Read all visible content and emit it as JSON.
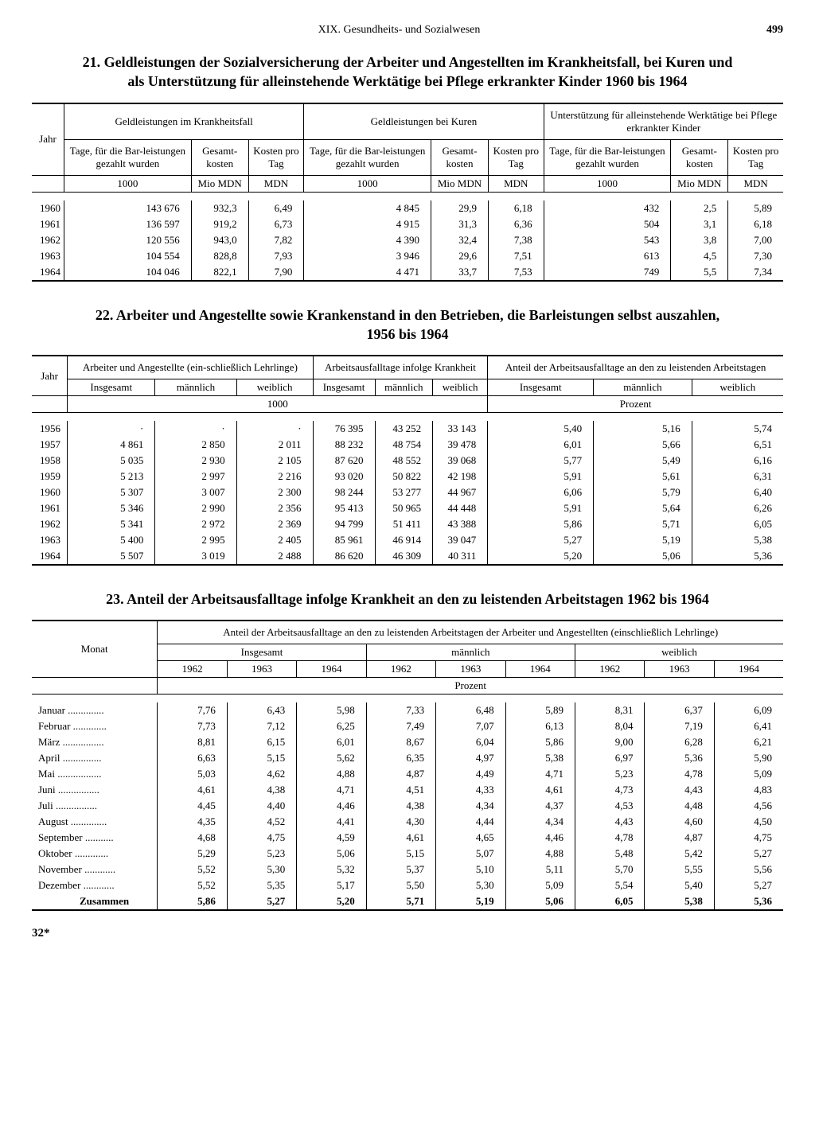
{
  "header": {
    "chapter": "XIX. Gesundheits- und Sozialwesen",
    "page": "499"
  },
  "table21": {
    "title": "21. Geldleistungen der Sozialversicherung der Arbeiter und Angestellten im Krankheitsfall, bei Kuren und als Unterstützung für alleinstehende Werktätige bei Pflege erkrankter Kinder 1960 bis 1964",
    "group_headers": [
      "Geldleistungen im Krankheitsfall",
      "Geldleistungen bei Kuren",
      "Unterstützung für alleinstehende Werktätige bei Pflege erkrankter Kinder"
    ],
    "year_label": "Jahr",
    "sub_headers": [
      "Tage, für die Bar-leistungen gezahlt wurden",
      "Gesamt-kosten",
      "Kosten pro Tag"
    ],
    "units": [
      "1000",
      "Mio MDN",
      "MDN",
      "1000",
      "Mio MDN",
      "MDN",
      "1000",
      "Mio MDN",
      "MDN"
    ],
    "rows": [
      {
        "y": "1960",
        "c": [
          "143 676",
          "932,3",
          "6,49",
          "4 845",
          "29,9",
          "6,18",
          "432",
          "2,5",
          "5,89"
        ]
      },
      {
        "y": "1961",
        "c": [
          "136 597",
          "919,2",
          "6,73",
          "4 915",
          "31,3",
          "6,36",
          "504",
          "3,1",
          "6,18"
        ]
      },
      {
        "y": "1962",
        "c": [
          "120 556",
          "943,0",
          "7,82",
          "4 390",
          "32,4",
          "7,38",
          "543",
          "3,8",
          "7,00"
        ]
      },
      {
        "y": "1963",
        "c": [
          "104 554",
          "828,8",
          "7,93",
          "3 946",
          "29,6",
          "7,51",
          "613",
          "4,5",
          "7,30"
        ]
      },
      {
        "y": "1964",
        "c": [
          "104 046",
          "822,1",
          "7,90",
          "4 471",
          "33,7",
          "7,53",
          "749",
          "5,5",
          "7,34"
        ]
      }
    ]
  },
  "table22": {
    "title": "22. Arbeiter und Angestellte sowie Krankenstand in den Betrieben, die Barleistungen selbst auszahlen, 1956 bis 1964",
    "group_headers": [
      "Arbeiter und Angestellte (ein-schließlich Lehrlinge)",
      "Arbeitsausfalltage infolge Krankheit",
      "Anteil der Arbeitsausfalltage an den zu leistenden Arbeitstagen"
    ],
    "year_label": "Jahr",
    "sub_headers": [
      "Insgesamt",
      "männlich",
      "weiblich",
      "Insgesamt",
      "männlich",
      "weiblich",
      "Insgesamt",
      "männlich",
      "weiblich"
    ],
    "unit_left": "1000",
    "unit_right": "Prozent",
    "rows": [
      {
        "y": "1956",
        "c": [
          "·",
          "·",
          "·",
          "76 395",
          "43 252",
          "33 143",
          "5,40",
          "5,16",
          "5,74"
        ]
      },
      {
        "y": "1957",
        "c": [
          "4 861",
          "2 850",
          "2 011",
          "88 232",
          "48 754",
          "39 478",
          "6,01",
          "5,66",
          "6,51"
        ]
      },
      {
        "y": "1958",
        "c": [
          "5 035",
          "2 930",
          "2 105",
          "87 620",
          "48 552",
          "39 068",
          "5,77",
          "5,49",
          "6,16"
        ]
      },
      {
        "y": "1959",
        "c": [
          "5 213",
          "2 997",
          "2 216",
          "93 020",
          "50 822",
          "42 198",
          "5,91",
          "5,61",
          "6,31"
        ]
      },
      {
        "y": "1960",
        "c": [
          "5 307",
          "3 007",
          "2 300",
          "98 244",
          "53 277",
          "44 967",
          "6,06",
          "5,79",
          "6,40"
        ]
      },
      {
        "y": "1961",
        "c": [
          "5 346",
          "2 990",
          "2 356",
          "95 413",
          "50 965",
          "44 448",
          "5,91",
          "5,64",
          "6,26"
        ]
      },
      {
        "y": "1962",
        "c": [
          "5 341",
          "2 972",
          "2 369",
          "94 799",
          "51 411",
          "43 388",
          "5,86",
          "5,71",
          "6,05"
        ]
      },
      {
        "y": "1963",
        "c": [
          "5 400",
          "2 995",
          "2 405",
          "85 961",
          "46 914",
          "39 047",
          "5,27",
          "5,19",
          "5,38"
        ]
      },
      {
        "y": "1964",
        "c": [
          "5 507",
          "3 019",
          "2 488",
          "86 620",
          "46 309",
          "40 311",
          "5,20",
          "5,06",
          "5,36"
        ]
      }
    ]
  },
  "table23": {
    "title": "23. Anteil der Arbeitsausfalltage infolge Krankheit an den zu leistenden Arbeitstagen 1962 bis 1964",
    "banner": "Anteil der Arbeitsausfalltage an den zu leistenden Arbeitstagen der Arbeiter und Angestellten (einschließlich Lehrlinge)",
    "month_label": "Monat",
    "group_headers": [
      "Insgesamt",
      "männlich",
      "weiblich"
    ],
    "years": [
      "1962",
      "1963",
      "1964"
    ],
    "unit": "Prozent",
    "rows": [
      {
        "m": "Januar",
        "c": [
          "7,76",
          "6,43",
          "5,98",
          "7,33",
          "6,48",
          "5,89",
          "8,31",
          "6,37",
          "6,09"
        ]
      },
      {
        "m": "Februar",
        "c": [
          "7,73",
          "7,12",
          "6,25",
          "7,49",
          "7,07",
          "6,13",
          "8,04",
          "7,19",
          "6,41"
        ]
      },
      {
        "m": "März",
        "c": [
          "8,81",
          "6,15",
          "6,01",
          "8,67",
          "6,04",
          "5,86",
          "9,00",
          "6,28",
          "6,21"
        ]
      },
      {
        "m": "April",
        "c": [
          "6,63",
          "5,15",
          "5,62",
          "6,35",
          "4,97",
          "5,38",
          "6,97",
          "5,36",
          "5,90"
        ]
      },
      {
        "m": "Mai",
        "c": [
          "5,03",
          "4,62",
          "4,88",
          "4,87",
          "4,49",
          "4,71",
          "5,23",
          "4,78",
          "5,09"
        ]
      },
      {
        "m": "Juni",
        "c": [
          "4,61",
          "4,38",
          "4,71",
          "4,51",
          "4,33",
          "4,61",
          "4,73",
          "4,43",
          "4,83"
        ]
      },
      {
        "m": "Juli",
        "c": [
          "4,45",
          "4,40",
          "4,46",
          "4,38",
          "4,34",
          "4,37",
          "4,53",
          "4,48",
          "4,56"
        ]
      },
      {
        "m": "August",
        "c": [
          "4,35",
          "4,52",
          "4,41",
          "4,30",
          "4,44",
          "4,34",
          "4,43",
          "4,60",
          "4,50"
        ]
      },
      {
        "m": "September",
        "c": [
          "4,68",
          "4,75",
          "4,59",
          "4,61",
          "4,65",
          "4,46",
          "4,78",
          "4,87",
          "4,75"
        ]
      },
      {
        "m": "Oktober",
        "c": [
          "5,29",
          "5,23",
          "5,06",
          "5,15",
          "5,07",
          "4,88",
          "5,48",
          "5,42",
          "5,27"
        ]
      },
      {
        "m": "November",
        "c": [
          "5,52",
          "5,30",
          "5,32",
          "5,37",
          "5,10",
          "5,11",
          "5,70",
          "5,55",
          "5,56"
        ]
      },
      {
        "m": "Dezember",
        "c": [
          "5,52",
          "5,35",
          "5,17",
          "5,50",
          "5,30",
          "5,09",
          "5,54",
          "5,40",
          "5,27"
        ]
      }
    ],
    "total_label": "Zusammen",
    "total": [
      "5,86",
      "5,27",
      "5,20",
      "5,71",
      "5,19",
      "5,06",
      "6,05",
      "5,38",
      "5,36"
    ]
  },
  "footer_mark": "32*"
}
